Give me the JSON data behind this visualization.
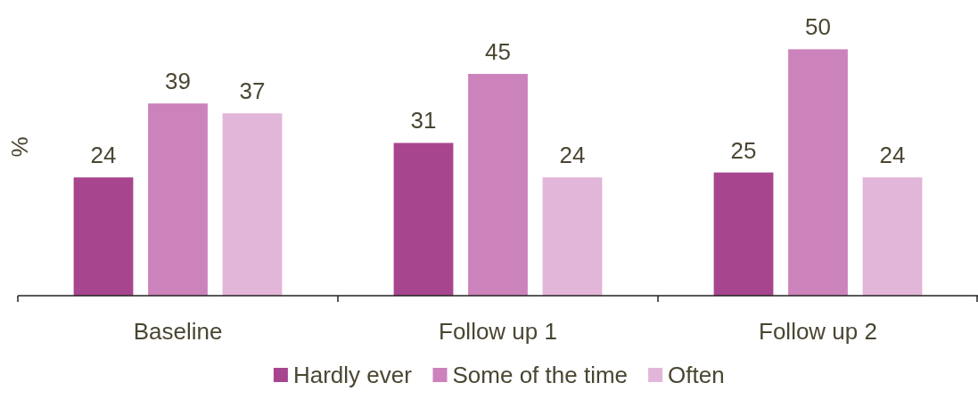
{
  "chart_data": {
    "type": "bar",
    "ylabel": "%",
    "categories": [
      "Baseline",
      "Follow up 1",
      "Follow up 2"
    ],
    "series": [
      {
        "name": "Hardly ever",
        "color": "#a8458f",
        "values": [
          24,
          31,
          25
        ]
      },
      {
        "name": "Some of the time",
        "color": "#cc82bb",
        "values": [
          39,
          45,
          50
        ]
      },
      {
        "name": "Often",
        "color": "#e2b6d8",
        "values": [
          37,
          24,
          24
        ]
      }
    ],
    "data_labels": true,
    "legend": "bottom",
    "grid": false
  }
}
